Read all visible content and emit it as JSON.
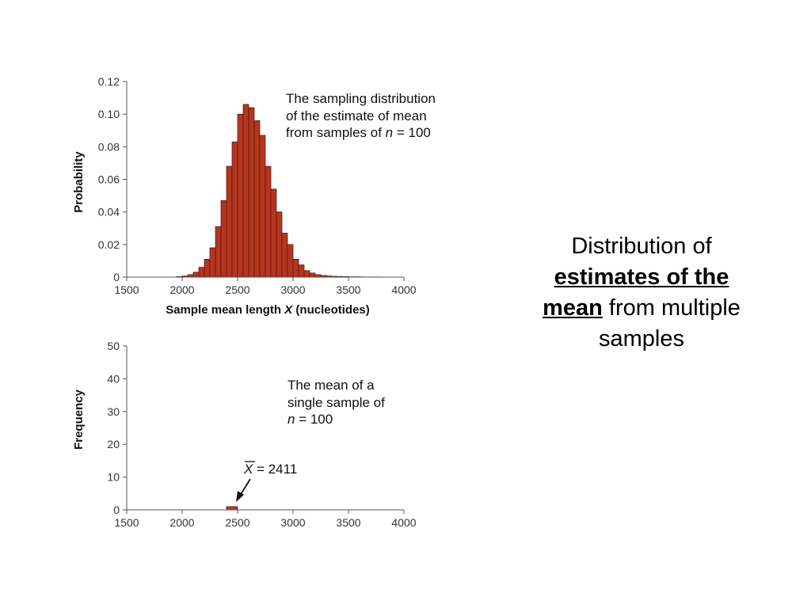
{
  "colors": {
    "bar_fill": "#b5351f",
    "bar_stroke": "#4a140b",
    "axis": "#555555"
  },
  "side_text": {
    "line1": "Distribution of",
    "emph": "estimates of the",
    "mean_word": "mean",
    "line3_rest": " from multiple",
    "line4": "samples"
  },
  "chart_data": [
    {
      "type": "bar",
      "ylabel": "Probability",
      "xlabel_prefix": "Sample mean length ",
      "xlabel_var": "X",
      "xlabel_suffix": " (nucleotides)",
      "xlim": [
        1500,
        4000
      ],
      "ylim": [
        0,
        0.12
      ],
      "xticks": [
        1500,
        2000,
        2500,
        3000,
        3500,
        4000
      ],
      "yticks": [
        0,
        0.02,
        0.04,
        0.06,
        0.08,
        0.1,
        0.12
      ],
      "ytick_labels": [
        "0",
        "0.02",
        "0.04",
        "0.06",
        "0.08",
        "0.10",
        "0.12"
      ],
      "bin_width": 50,
      "bin_starts": [
        1950,
        2000,
        2050,
        2100,
        2150,
        2200,
        2250,
        2300,
        2350,
        2400,
        2450,
        2500,
        2550,
        2600,
        2650,
        2700,
        2750,
        2800,
        2850,
        2900,
        2950,
        3000,
        3050,
        3100,
        3150,
        3200,
        3250,
        3300,
        3350,
        3400,
        3450,
        3500,
        3550,
        3600,
        3650,
        3700,
        3750,
        3800,
        3850,
        3900
      ],
      "values": [
        0.0003,
        0.0007,
        0.0015,
        0.003,
        0.006,
        0.011,
        0.018,
        0.031,
        0.047,
        0.068,
        0.083,
        0.1,
        0.106,
        0.104,
        0.096,
        0.087,
        0.068,
        0.054,
        0.04,
        0.027,
        0.02,
        0.011,
        0.0075,
        0.004,
        0.0025,
        0.0015,
        0.001,
        0.0007,
        0.0005,
        0.0004,
        0.0003,
        0.0002,
        0.0002,
        0.00015,
        0.0001,
        0.0001,
        0.0001,
        5e-05,
        5e-05,
        5e-05
      ],
      "annotation": {
        "line1": "The sampling distribution",
        "line2": "of the estimate of mean",
        "line3_prefix": "from samples of ",
        "line3_var": "n",
        "line3_suffix": " = 100"
      }
    },
    {
      "type": "bar",
      "ylabel": "Frequency",
      "xlim": [
        1500,
        4000
      ],
      "ylim": [
        0,
        50
      ],
      "xticks": [
        1500,
        2000,
        2500,
        3000,
        3500,
        4000
      ],
      "yticks": [
        0,
        10,
        20,
        30,
        40,
        50
      ],
      "ytick_labels": [
        "0",
        "10",
        "20",
        "30",
        "40",
        "50"
      ],
      "bin_width": 100,
      "bin_starts": [
        2400
      ],
      "values": [
        1
      ],
      "annotation": {
        "line1": "The mean of a",
        "line2": "single sample of",
        "line3_var": "n",
        "line3_suffix": " = 100"
      },
      "marker": {
        "var": "X",
        "text": " = 2411",
        "value": 2411
      }
    }
  ]
}
